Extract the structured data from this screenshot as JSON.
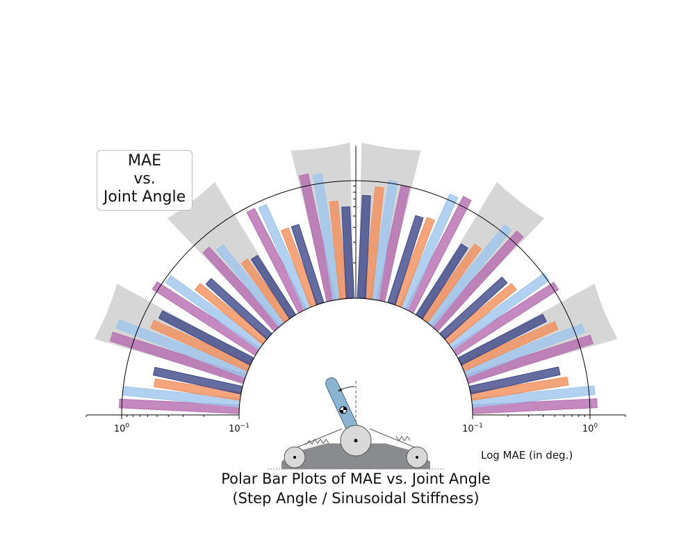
{
  "chart_data": {
    "type": "bar",
    "subtype": "mirrored-polar-bar",
    "title": "Polar Bar Plots of MAE vs. Joint Angle",
    "subtitle": "(Step Angle / Sinusoidal Stiffness)",
    "annotation": "MAE\nvs.\nJoint Angle",
    "radial_axis_label": "Log MAE (in deg.)",
    "radial_scale": "log",
    "radial_range": [
      0.1,
      1.0
    ],
    "tick_labels": {
      "left": [
        "10^0",
        "10^-1"
      ],
      "right": [
        "10^-1",
        "10^0"
      ]
    },
    "series_colors": [
      "#b56db0",
      "#9fc6ec",
      "#f28f5a",
      "#3d4788"
    ],
    "highlight_color": "#d6d6d6",
    "left": {
      "groups": [
        {
          "values": [
            1.05,
            1.0,
            0.55,
            0.58
          ],
          "highlight": false
        },
        {
          "values": [
            1.55,
            1.5,
            0.8,
            0.75
          ],
          "highlight": true
        },
        {
          "values": [
            1.1,
            0.95,
            0.55,
            0.5
          ],
          "highlight": false
        },
        {
          "values": [
            0.8,
            0.7,
            0.42,
            0.4
          ],
          "highlight": true
        },
        {
          "values": [
            0.92,
            0.9,
            0.5,
            0.5
          ],
          "highlight": false
        },
        {
          "values": [
            1.25,
            1.2,
            0.68,
            0.6
          ],
          "highlight": true
        }
      ]
    },
    "right": {
      "groups": [
        {
          "values": [
            1.15,
            1.12,
            0.68,
            0.6
          ],
          "highlight": false
        },
        {
          "values": [
            1.3,
            1.2,
            0.75,
            0.65
          ],
          "highlight": true
        },
        {
          "values": [
            1.08,
            1.03,
            0.55,
            0.52
          ],
          "highlight": false
        },
        {
          "values": [
            1.22,
            1.15,
            0.6,
            0.52
          ],
          "highlight": true
        },
        {
          "values": [
            1.2,
            1.12,
            0.62,
            0.6
          ],
          "highlight": false
        },
        {
          "values": [
            1.0,
            1.05,
            0.9,
            0.75
          ],
          "highlight": true
        }
      ]
    },
    "grid": false,
    "legend": "none"
  }
}
